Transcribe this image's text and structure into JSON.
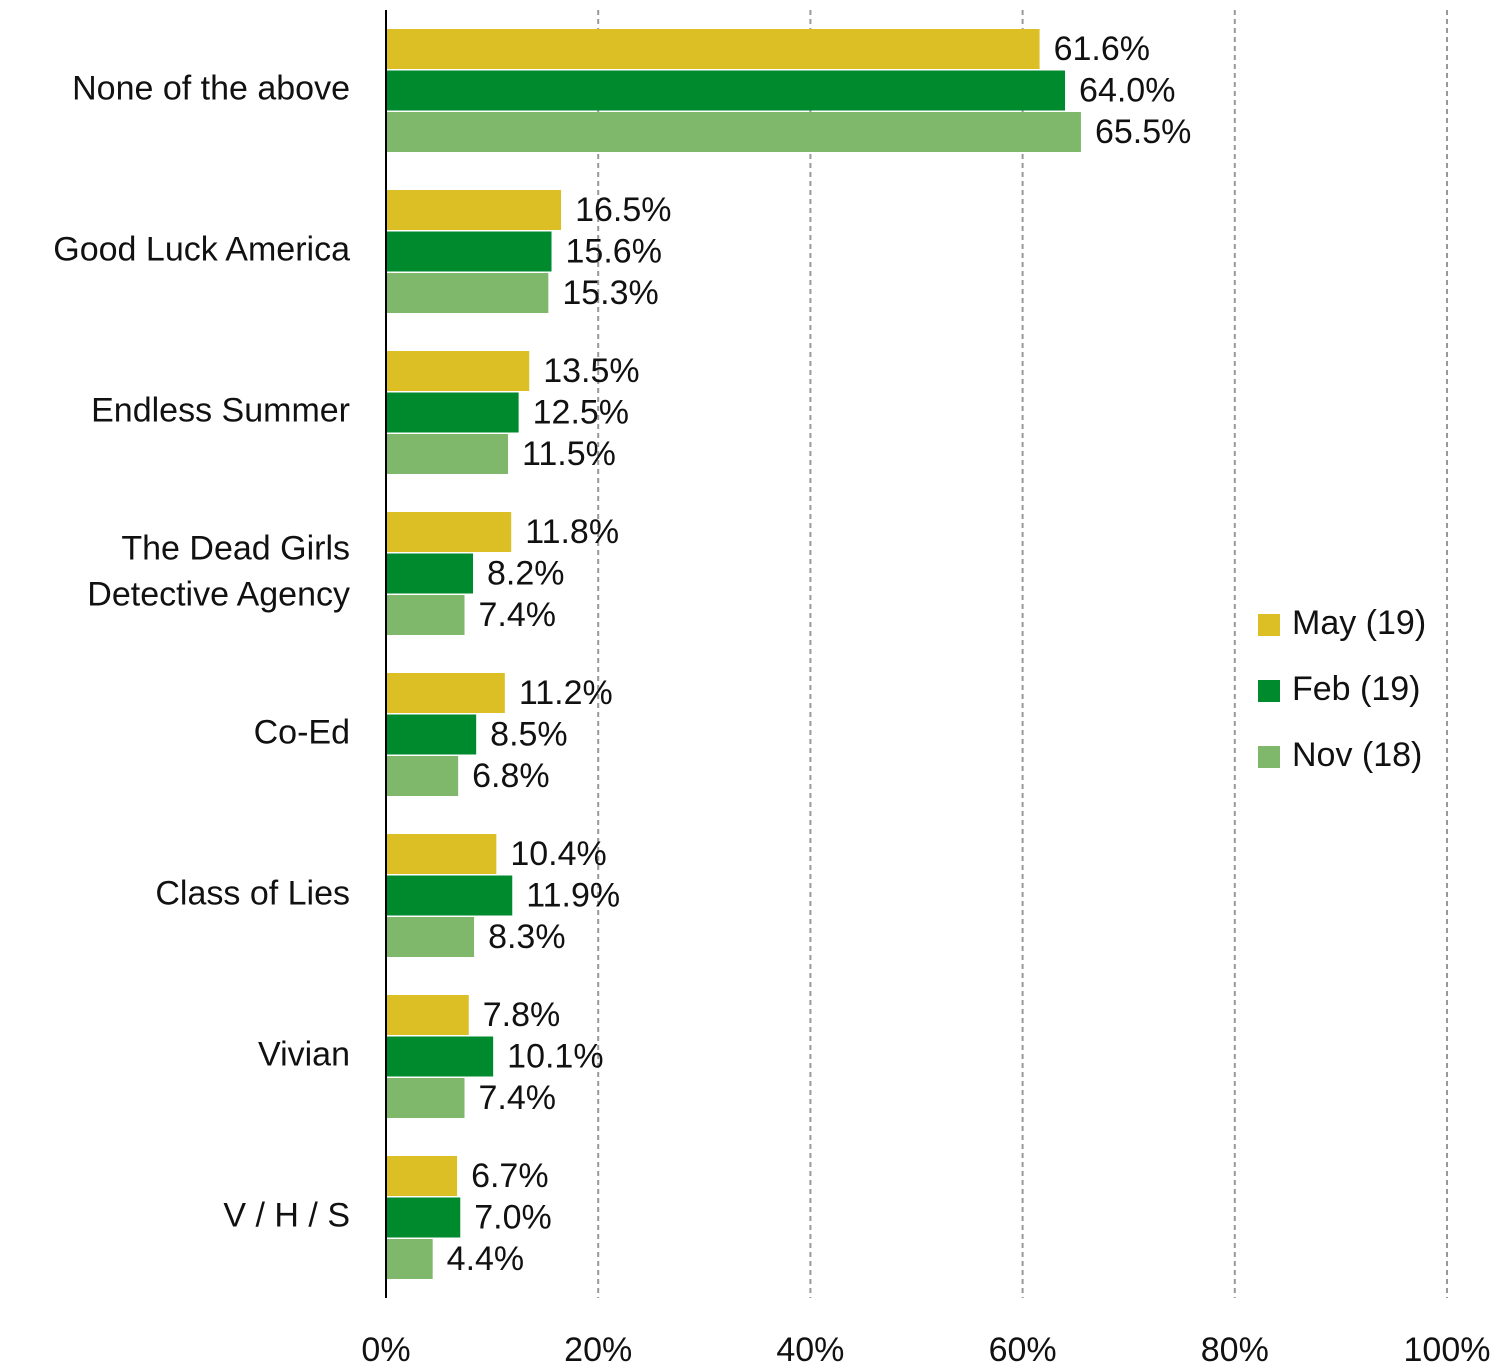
{
  "chart_data": {
    "type": "bar",
    "orientation": "horizontal",
    "categories": [
      "None of the above",
      "Good Luck America",
      "Endless Summer",
      "The Dead Girls\nDetective Agency",
      "Co-Ed",
      "Class of Lies",
      "Vivian",
      "V / H / S"
    ],
    "series": [
      {
        "name": "May (19)",
        "color": "#dbbf25",
        "values": [
          61.6,
          16.5,
          13.5,
          11.8,
          11.2,
          10.4,
          7.8,
          6.7
        ],
        "value_labels": [
          "61.6%",
          "16.5%",
          "13.5%",
          "11.8%",
          "11.2%",
          "10.4%",
          "7.8%",
          "6.7%"
        ]
      },
      {
        "name": "Feb (19)",
        "color": "#008a2e",
        "values": [
          64.0,
          15.6,
          12.5,
          8.2,
          8.5,
          11.9,
          10.1,
          7.0
        ],
        "value_labels": [
          "64.0%",
          "15.6%",
          "12.5%",
          "8.2%",
          "8.5%",
          "11.9%",
          "10.1%",
          "7.0%"
        ]
      },
      {
        "name": "Nov (18)",
        "color": "#7fb86a",
        "values": [
          65.5,
          15.3,
          11.5,
          7.4,
          6.8,
          8.3,
          7.4,
          4.4
        ],
        "value_labels": [
          "65.5%",
          "15.3%",
          "11.5%",
          "7.4%",
          "6.8%",
          "8.3%",
          "7.4%",
          "4.4%"
        ]
      }
    ],
    "xlim": [
      0,
      100
    ],
    "xticks": [
      {
        "value": 0,
        "label": "0%"
      },
      {
        "value": 20,
        "label": "20%"
      },
      {
        "value": 40,
        "label": "40%"
      },
      {
        "value": 60,
        "label": "60%"
      },
      {
        "value": 80,
        "label": "80%"
      },
      {
        "value": 100,
        "label": "100%"
      }
    ],
    "grid": true,
    "legend": "right"
  }
}
